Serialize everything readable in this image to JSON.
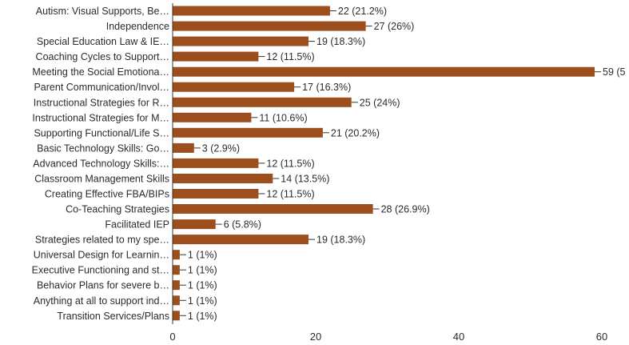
{
  "chart_data": {
    "type": "bar",
    "orientation": "horizontal",
    "categories": [
      "Autism: Visual Supports, Be…",
      "Independence",
      "Special Education Law & IE…",
      "Coaching Cycles to Support…",
      "Meeting the Social Emotiona…",
      "Parent Communication/Invol…",
      "Instructional Strategies for R…",
      "Instructional Strategies for M…",
      "Supporting Functional/Life S…",
      "Basic Technology Skills: Go…",
      "Advanced Technology Skills:…",
      "Classroom Management Skills",
      "Creating Effective FBA/BIPs",
      "Co-Teaching Strategies",
      "Facilitated IEP",
      "Strategies related to my spe…",
      "Universal Design for Learnin…",
      "Executive Functioning and st…",
      "Behavior Plans for severe b…",
      "Anything at all to support ind…",
      "Transition Services/Plans"
    ],
    "values": [
      22,
      27,
      19,
      12,
      59,
      17,
      25,
      11,
      21,
      3,
      12,
      14,
      12,
      28,
      6,
      19,
      1,
      1,
      1,
      1,
      1
    ],
    "value_labels": [
      "22 (21.2%)",
      "27 (26%)",
      "19 (18.3%)",
      "12 (11.5%)",
      "59 (5",
      "17 (16.3%)",
      "25 (24%)",
      "11 (10.6%)",
      "21 (20.2%)",
      "3 (2.9%)",
      "12 (11.5%)",
      "14 (13.5%)",
      "12 (11.5%)",
      "28 (26.9%)",
      "6 (5.8%)",
      "19 (18.3%)",
      "1 (1%)",
      "1 (1%)",
      "1 (1%)",
      "1 (1%)",
      "1 (1%)"
    ],
    "xlim": [
      0,
      60
    ],
    "x_ticks": [
      "0",
      "20",
      "40",
      "60"
    ],
    "grid": false,
    "title": "",
    "xlabel": "",
    "ylabel": "",
    "bar_color": "#9c4f1d",
    "axis_color": "#333333"
  }
}
